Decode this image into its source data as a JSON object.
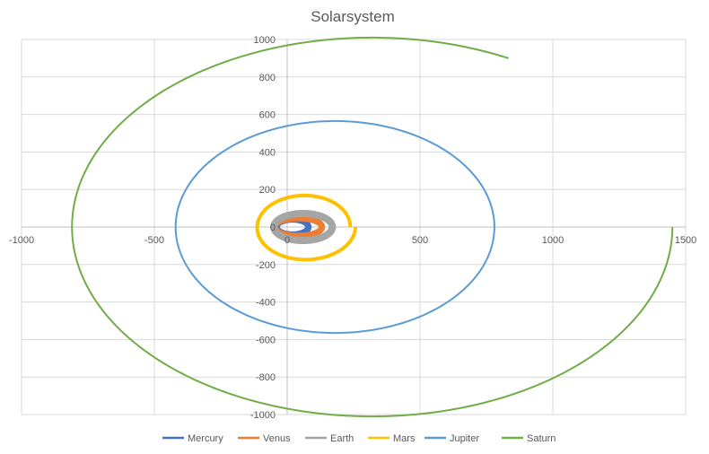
{
  "chart_data": {
    "type": "scatter",
    "title": "Solarsystem",
    "xlabel": "",
    "ylabel": "",
    "xlim": [
      -1000,
      1500
    ],
    "ylim": [
      -1000,
      1000
    ],
    "x_ticks": [
      -1000,
      -500,
      0,
      500,
      1000,
      1500
    ],
    "y_ticks": [
      -1000,
      -800,
      -600,
      -400,
      -200,
      0,
      200,
      400,
      600,
      800,
      1000
    ],
    "x_tick_labels": [
      "-1000",
      "-500",
      "0",
      "500",
      "1000",
      "1500"
    ],
    "y_tick_labels": [
      "-1000",
      "-800",
      "-600",
      "-400",
      "-200",
      "0",
      "200",
      "400",
      "600",
      "800",
      "1000"
    ],
    "grid": true,
    "legend_position": "bottom",
    "series": [
      {
        "name": "Mercury",
        "color": "#4472C4",
        "stroke": 7,
        "center": [
          20,
          0
        ],
        "rx": [
          60,
          60
        ],
        "ry": [
          40,
          40
        ],
        "start_deg": 0,
        "sweep_deg": 360
      },
      {
        "name": "Venus",
        "color": "#ED7D31",
        "stroke": 7,
        "center": [
          42,
          0
        ],
        "rx": [
          89,
          89
        ],
        "ry": [
          47,
          47
        ],
        "start_deg": 0,
        "sweep_deg": 360
      },
      {
        "name": "Earth",
        "color": "#A5A5A5",
        "stroke": 8,
        "center": [
          60,
          0
        ],
        "rx": [
          110,
          110
        ],
        "ry": [
          72,
          72
        ],
        "start_deg": 0,
        "sweep_deg": 360
      },
      {
        "name": "Mars",
        "color": "#FFC000",
        "stroke": 4,
        "center": [
          67,
          0
        ],
        "rx": [
          170,
          190
        ],
        "ry": [
          165,
          177
        ],
        "start_deg": 0,
        "sweep_deg": 360
      },
      {
        "name": "Jupiter",
        "color": "#5B9BD5",
        "stroke": 2,
        "center": [
          180,
          0
        ],
        "rx": [
          600,
          600
        ],
        "ry": [
          565,
          565
        ],
        "start_deg": 0,
        "sweep_deg": 360
      },
      {
        "name": "Saturn",
        "color": "#70AD47",
        "stroke": 2,
        "center": [
          320,
          0
        ],
        "rx": [
          1130,
          1130
        ],
        "ry": [
          1010,
          1010
        ],
        "start_deg": 0,
        "sweep_deg": -297
      }
    ]
  }
}
